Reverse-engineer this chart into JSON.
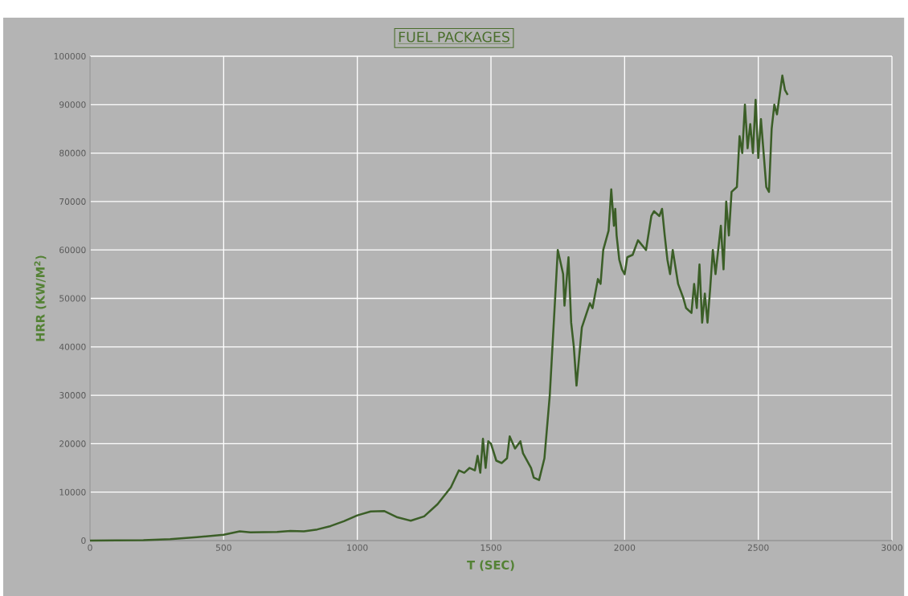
{
  "chart_data": {
    "type": "line",
    "title": "FUEL PACKAGES",
    "xlabel": "T (SEC)",
    "ylabel": "HRR (KW/M$^{2}$)",
    "xlim": [
      0,
      3000
    ],
    "xticks": [
      0,
      500,
      1000,
      1500,
      2000,
      2500,
      3000
    ],
    "ylim": [
      0,
      100000
    ],
    "yticks": [
      0,
      10000,
      20000,
      30000,
      40000,
      50000,
      60000,
      70000,
      80000,
      90000,
      100000
    ],
    "grid": true,
    "marker": "none",
    "line_style": "solid",
    "x": [
      0,
      200,
      300,
      400,
      500,
      560,
      600,
      700,
      750,
      800,
      850,
      900,
      950,
      1000,
      1050,
      1100,
      1150,
      1200,
      1250,
      1300,
      1350,
      1380,
      1400,
      1420,
      1440,
      1450,
      1460,
      1470,
      1480,
      1490,
      1500,
      1520,
      1540,
      1560,
      1570,
      1590,
      1610,
      1620,
      1650,
      1660,
      1680,
      1700,
      1720,
      1730,
      1750,
      1770,
      1775,
      1790,
      1800,
      1810,
      1820,
      1830,
      1840,
      1870,
      1880,
      1900,
      1910,
      1920,
      1940,
      1950,
      1960,
      1965,
      1970,
      1980,
      1990,
      2000,
      2010,
      2030,
      2050,
      2080,
      2100,
      2110,
      2130,
      2140,
      2150,
      2160,
      2170,
      2180,
      2200,
      2220,
      2230,
      2250,
      2260,
      2270,
      2280,
      2290,
      2300,
      2310,
      2320,
      2330,
      2340,
      2360,
      2370,
      2380,
      2390,
      2400,
      2420,
      2430,
      2440,
      2450,
      2460,
      2470,
      2480,
      2490,
      2500,
      2510,
      2520,
      2530,
      2540,
      2550,
      2560,
      2570,
      2580,
      2590,
      2600,
      2610
    ],
    "series": [
      {
        "color": "#3b5e27",
        "values": [
          0,
          100,
          300,
          700,
          1200,
          1900,
          1700,
          1800,
          2000,
          1900,
          2300,
          3000,
          4000,
          5200,
          6000,
          6100,
          4800,
          4100,
          5000,
          7500,
          11000,
          14500,
          14000,
          15000,
          14500,
          17500,
          14000,
          21000,
          15000,
          20500,
          20000,
          16500,
          16000,
          17000,
          21500,
          19000,
          20500,
          18000,
          15000,
          13000,
          12500,
          17000,
          30000,
          40000,
          60000,
          55000,
          48500,
          58500,
          45000,
          40000,
          32000,
          38000,
          44000,
          49000,
          48000,
          54000,
          53000,
          60000,
          64000,
          72500,
          65000,
          68500,
          63000,
          58000,
          56000,
          55000,
          58500,
          59000,
          62000,
          60000,
          67000,
          68000,
          67000,
          68500,
          63000,
          58000,
          55000,
          60000,
          53000,
          50000,
          48000,
          47000,
          53000,
          48000,
          57000,
          45000,
          51000,
          45000,
          52000,
          60000,
          55000,
          65000,
          56000,
          70000,
          63000,
          72000,
          73000,
          83500,
          80000,
          90000,
          81000,
          86000,
          80000,
          91000,
          79000,
          87000,
          80000,
          73000,
          72000,
          85000,
          90000,
          88000,
          92000,
          96000,
          93000,
          92000
        ]
      }
    ]
  }
}
